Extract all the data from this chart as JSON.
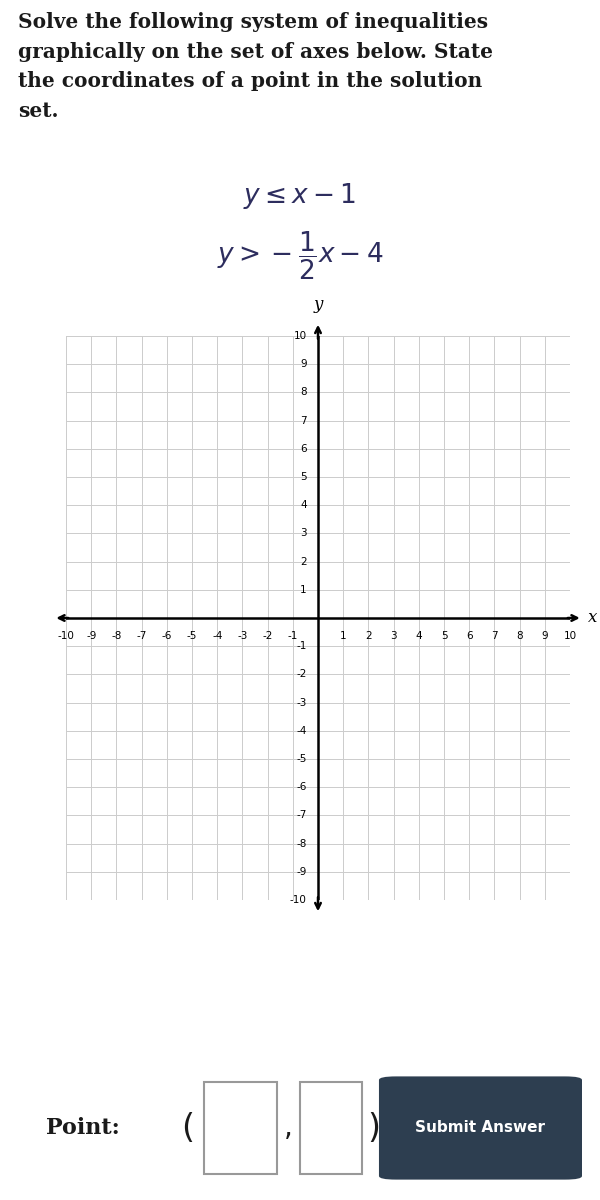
{
  "title_text": "Solve the following system of inequalities\ngraphically on the set of axes below. State\nthe coordinates of a point in the solution\nset.",
  "xlim": [
    -10,
    10
  ],
  "ylim": [
    -10,
    10
  ],
  "xlabel": "x",
  "ylabel": "y",
  "grid_color": "#cccccc",
  "axis_color": "#000000",
  "background_color": "#ffffff",
  "plot_bg_color": "#ffffff",
  "tick_color": "#000000",
  "text_color": "#2d2d5e",
  "bottom_panel_color": "#e0e0e0",
  "button_color": "#2d3e50",
  "button_text_color": "#ffffff"
}
